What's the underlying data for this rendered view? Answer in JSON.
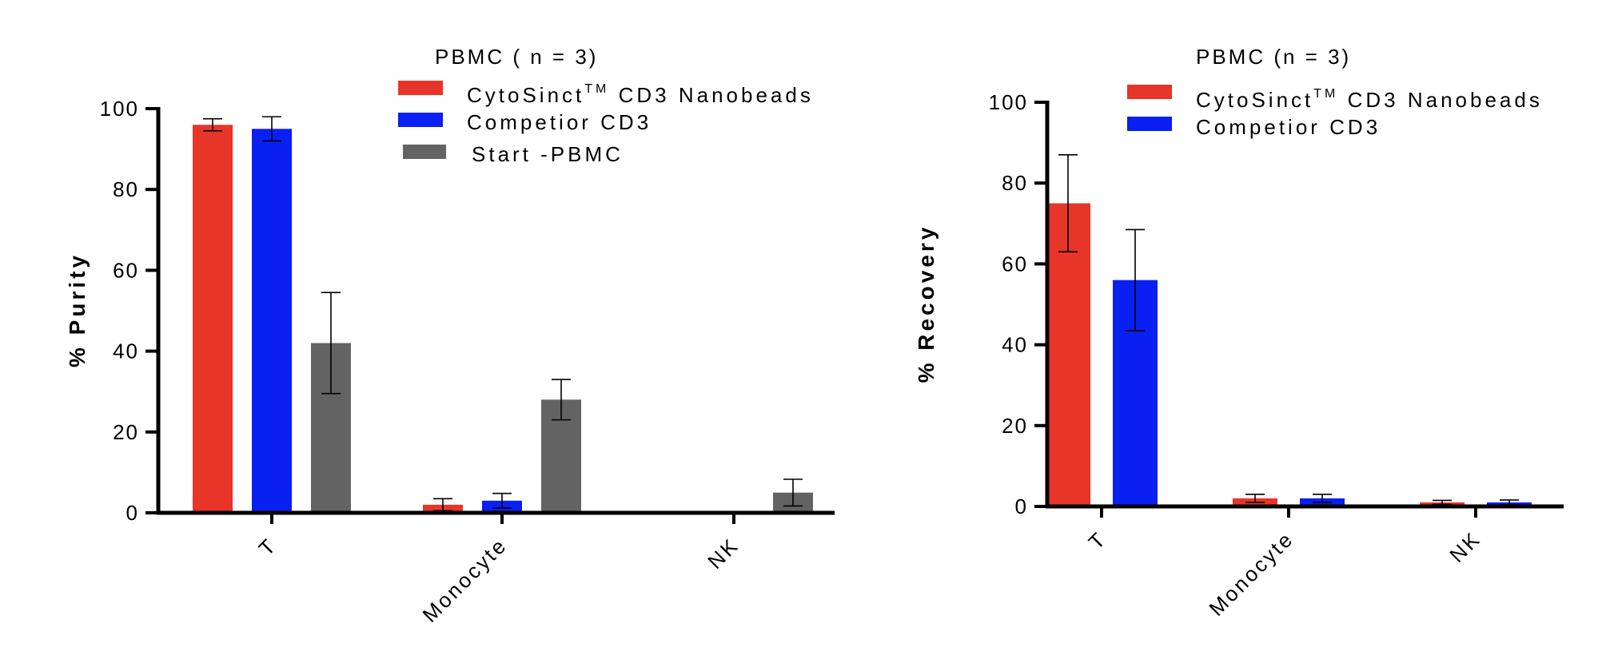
{
  "chart_data": [
    {
      "type": "bar",
      "legend_title": "PBMC ( n = 3)",
      "ylabel": "% Purity",
      "ylim": [
        0,
        100
      ],
      "yticks": [
        0,
        20,
        40,
        60,
        80,
        100
      ],
      "categories": [
        "T",
        "Monocyte",
        "NK"
      ],
      "series": [
        {
          "name": "CytoSinct",
          "name_sup": "TM",
          "name_suffix": " CD3 Nanobeads",
          "color": "#e8352a",
          "values": [
            96,
            2,
            0
          ],
          "errors": [
            1.5,
            1.5,
            0
          ]
        },
        {
          "name": "Competior CD3",
          "color": "#0a1ff2",
          "values": [
            95,
            3,
            0
          ],
          "errors": [
            3,
            1.8,
            0
          ]
        },
        {
          "name": "Start -PBMC",
          "color": "#636363",
          "values": [
            42,
            28,
            5
          ],
          "errors": [
            12.5,
            5,
            3.3
          ]
        }
      ]
    },
    {
      "type": "bar",
      "legend_title": "PBMC (n = 3)",
      "ylabel": "% Recovery",
      "ylim": [
        0,
        100
      ],
      "yticks": [
        0,
        20,
        40,
        60,
        80,
        100
      ],
      "categories": [
        "T",
        "Monocyte",
        "NK"
      ],
      "series": [
        {
          "name": "CytoSinct",
          "name_sup": "TM",
          "name_suffix": " CD3 Nanobeads",
          "color": "#e8352a",
          "values": [
            75,
            2,
            1
          ],
          "errors": [
            12,
            1,
            0.5
          ]
        },
        {
          "name": "Competior CD3",
          "color": "#0a1ff2",
          "values": [
            56,
            2,
            1
          ],
          "errors": [
            12.5,
            1,
            0.6
          ]
        }
      ]
    }
  ]
}
